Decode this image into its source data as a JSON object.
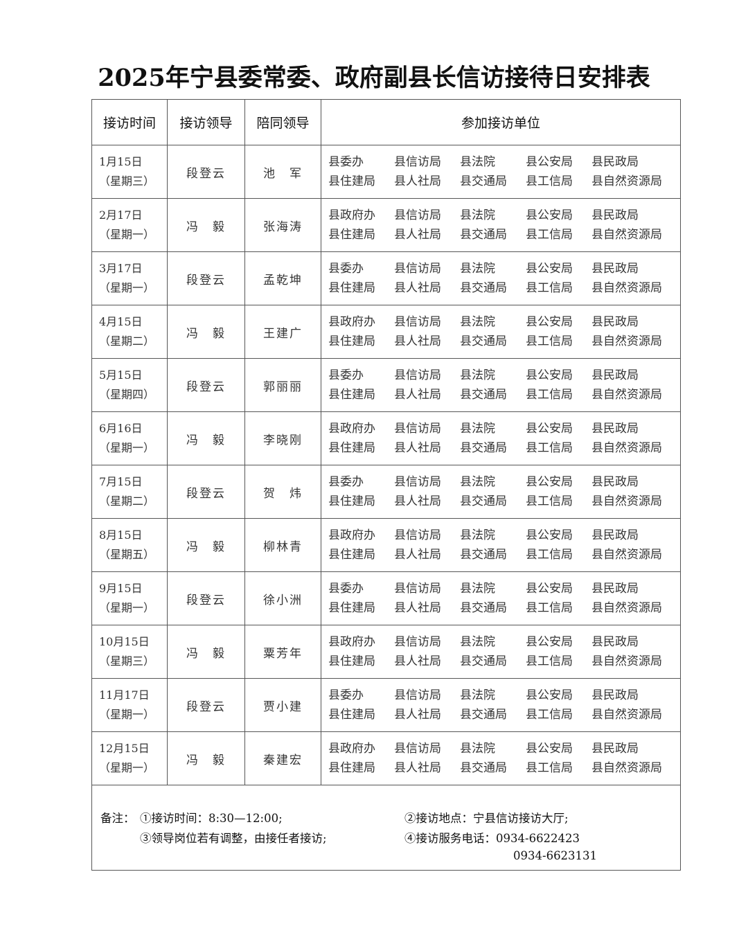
{
  "title": "2025年宁县委常委、政府副县长信访接待日安排表",
  "headers": [
    "接访时间",
    "接访领导",
    "陪同领导",
    "参加接访单位"
  ],
  "rows": [
    {
      "date": "1月15日",
      "weekday": "（星期三）",
      "leader": "段登云",
      "companion": "池　军",
      "units": [
        [
          "县委办",
          "县信访局",
          "县法院",
          "县公安局",
          "县民政局"
        ],
        [
          "县住建局",
          "县人社局",
          "县交通局",
          "县工信局",
          "县自然资源局"
        ]
      ]
    },
    {
      "date": "2月17日",
      "weekday": "（星期一）",
      "leader": "冯　毅",
      "companion": "张海涛",
      "units": [
        [
          "县政府办",
          "县信访局",
          "县法院",
          "县公安局",
          "县民政局"
        ],
        [
          "县住建局",
          "县人社局",
          "县交通局",
          "县工信局",
          "县自然资源局"
        ]
      ]
    },
    {
      "date": "3月17日",
      "weekday": "（星期一）",
      "leader": "段登云",
      "companion": "孟乾坤",
      "units": [
        [
          "县委办",
          "县信访局",
          "县法院",
          "县公安局",
          "县民政局"
        ],
        [
          "县住建局",
          "县人社局",
          "县交通局",
          "县工信局",
          "县自然资源局"
        ]
      ]
    },
    {
      "date": "4月15日",
      "weekday": "（星期二）",
      "leader": "冯　毅",
      "companion": "王建广",
      "units": [
        [
          "县政府办",
          "县信访局",
          "县法院",
          "县公安局",
          "县民政局"
        ],
        [
          "县住建局",
          "县人社局",
          "县交通局",
          "县工信局",
          "县自然资源局"
        ]
      ]
    },
    {
      "date": "5月15日",
      "weekday": "（星期四）",
      "leader": "段登云",
      "companion": "郭丽丽",
      "units": [
        [
          "县委办",
          "县信访局",
          "县法院",
          "县公安局",
          "县民政局"
        ],
        [
          "县住建局",
          "县人社局",
          "县交通局",
          "县工信局",
          "县自然资源局"
        ]
      ]
    },
    {
      "date": "6月16日",
      "weekday": "（星期一）",
      "leader": "冯　毅",
      "companion": "李晓刚",
      "units": [
        [
          "县政府办",
          "县信访局",
          "县法院",
          "县公安局",
          "县民政局"
        ],
        [
          "县住建局",
          "县人社局",
          "县交通局",
          "县工信局",
          "县自然资源局"
        ]
      ]
    },
    {
      "date": "7月15日",
      "weekday": "（星期二）",
      "leader": "段登云",
      "companion": "贺　炜",
      "units": [
        [
          "县委办",
          "县信访局",
          "县法院",
          "县公安局",
          "县民政局"
        ],
        [
          "县住建局",
          "县人社局",
          "县交通局",
          "县工信局",
          "县自然资源局"
        ]
      ]
    },
    {
      "date": "8月15日",
      "weekday": "（星期五）",
      "leader": "冯　毅",
      "companion": "柳林青",
      "units": [
        [
          "县政府办",
          "县信访局",
          "县法院",
          "县公安局",
          "县民政局"
        ],
        [
          "县住建局",
          "县人社局",
          "县交通局",
          "县工信局",
          "县自然资源局"
        ]
      ]
    },
    {
      "date": "9月15日",
      "weekday": "（星期一）",
      "leader": "段登云",
      "companion": "徐小洲",
      "units": [
        [
          "县委办",
          "县信访局",
          "县法院",
          "县公安局",
          "县民政局"
        ],
        [
          "县住建局",
          "县人社局",
          "县交通局",
          "县工信局",
          "县自然资源局"
        ]
      ]
    },
    {
      "date": "10月15日",
      "weekday": "（星期三）",
      "leader": "冯　毅",
      "companion": "粟芳年",
      "units": [
        [
          "县政府办",
          "县信访局",
          "县法院",
          "县公安局",
          "县民政局"
        ],
        [
          "县住建局",
          "县人社局",
          "县交通局",
          "县工信局",
          "县自然资源局"
        ]
      ]
    },
    {
      "date": "11月17日",
      "weekday": "（星期一）",
      "leader": "段登云",
      "companion": "贾小建",
      "units": [
        [
          "县委办",
          "县信访局",
          "县法院",
          "县公安局",
          "县民政局"
        ],
        [
          "县住建局",
          "县人社局",
          "县交通局",
          "县工信局",
          "县自然资源局"
        ]
      ]
    },
    {
      "date": "12月15日",
      "weekday": "（星期一）",
      "leader": "冯　毅",
      "companion": "秦建宏",
      "units": [
        [
          "县政府办",
          "县信访局",
          "县法院",
          "县公安局",
          "县民政局"
        ],
        [
          "县住建局",
          "县人社局",
          "县交通局",
          "县工信局",
          "县自然资源局"
        ]
      ]
    }
  ],
  "notes": {
    "label": "备注：",
    "note1": "①接访时间：8:30—12:00;",
    "note2": "②接访地点：宁县信访接访大厅;",
    "note3": "③领导岗位若有调整，由接任者接访;",
    "note4": "④接访服务电话：0934-6622423",
    "phone2": "0934-6623131"
  }
}
